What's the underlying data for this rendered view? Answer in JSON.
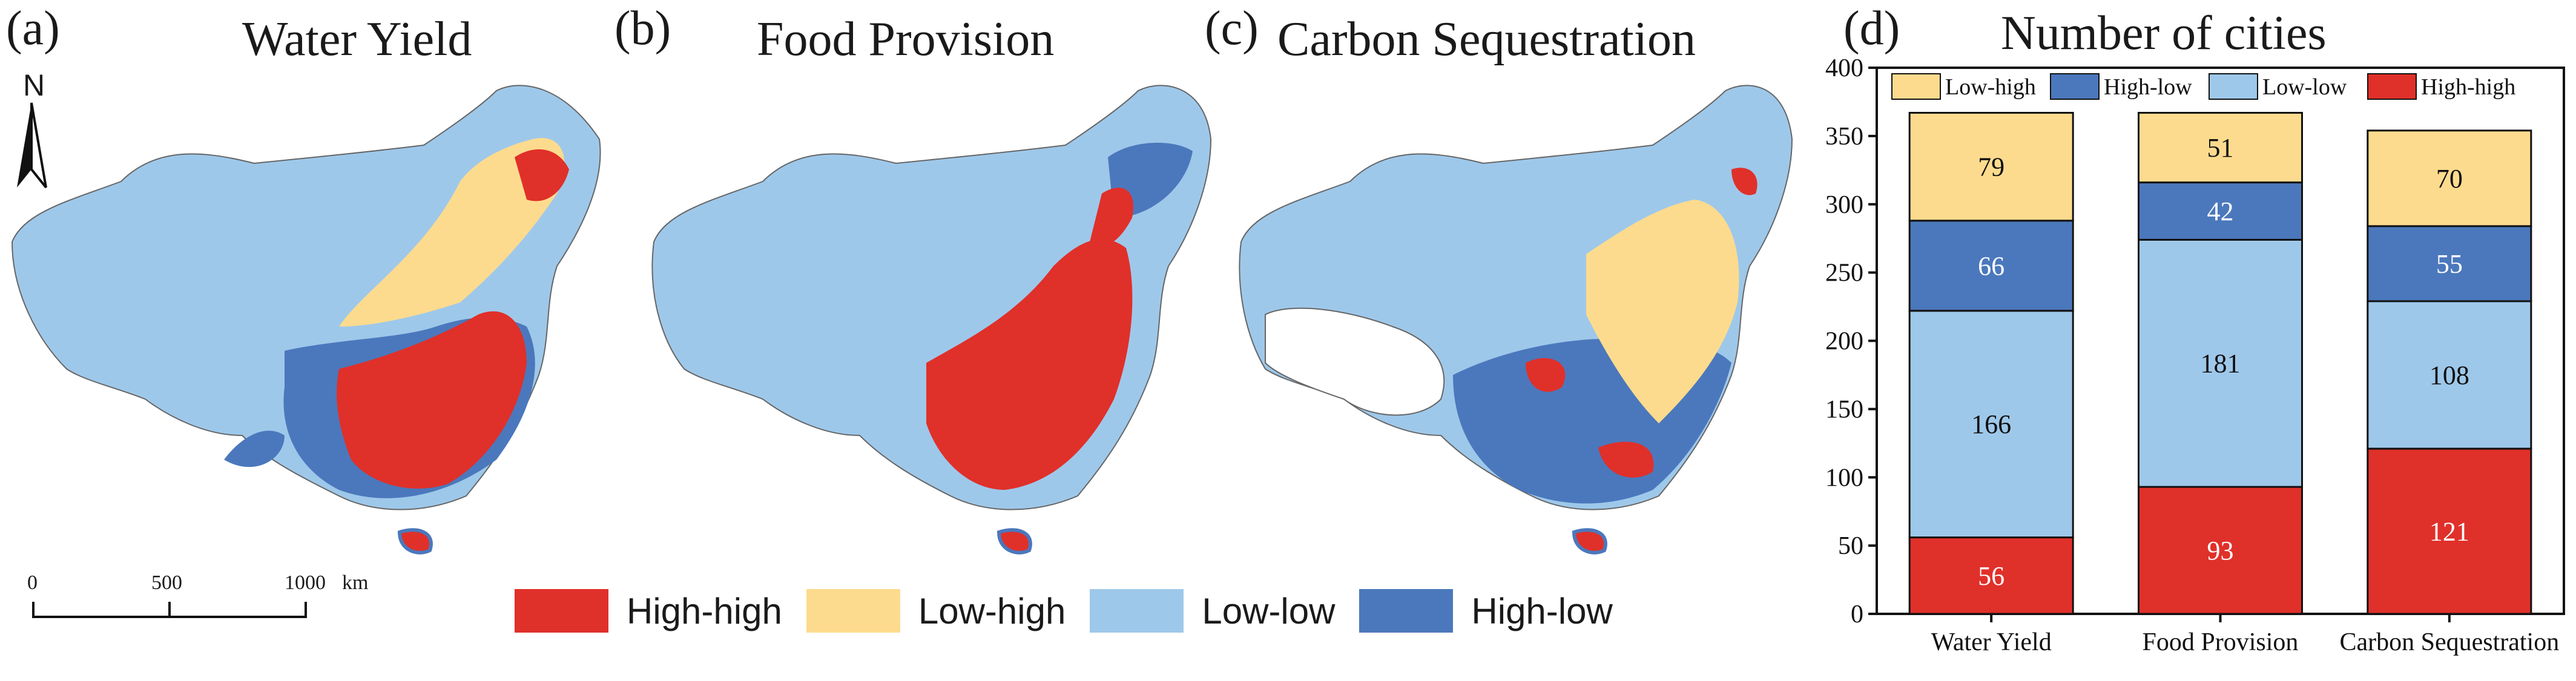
{
  "panels": [
    {
      "label": "(a)",
      "title": "Water Yield"
    },
    {
      "label": "(b)",
      "title": "Food Provision"
    },
    {
      "label": "(c)",
      "title": "Carbon Sequestration"
    },
    {
      "label": "(d)",
      "title": "Number of cities"
    }
  ],
  "map_legend": [
    {
      "label": "High-high",
      "color": "#e0302a"
    },
    {
      "label": "Low-high",
      "color": "#fddb8e"
    },
    {
      "label": "Low-low",
      "color": "#9ec8ea"
    },
    {
      "label": "High-low",
      "color": "#4b78bc"
    }
  ],
  "scale_bar": {
    "ticks": [
      "0",
      "500",
      "1000"
    ],
    "unit": "km"
  },
  "north_label": "N",
  "chart_data": {
    "type": "bar",
    "stacked": true,
    "title": "Number of cities",
    "categories": [
      "Water Yield",
      "Food Provision",
      "Carbon Sequestration"
    ],
    "series": [
      {
        "name": "High-high",
        "color": "#e0302a",
        "values": [
          56,
          93,
          121
        ]
      },
      {
        "name": "Low-low",
        "color": "#9ec8ea",
        "values": [
          166,
          181,
          108
        ]
      },
      {
        "name": "High-low",
        "color": "#4b78bc",
        "values": [
          66,
          42,
          55
        ]
      },
      {
        "name": "Low-high",
        "color": "#fddb8e",
        "values": [
          79,
          51,
          70
        ]
      }
    ],
    "legend_order": [
      "Low-high",
      "High-low",
      "Low-low",
      "High-high"
    ],
    "ylim": [
      0,
      400
    ],
    "yticks": [
      "0",
      "50",
      "100",
      "150",
      "200",
      "250",
      "300",
      "350",
      "400"
    ],
    "legend_position": "top"
  }
}
